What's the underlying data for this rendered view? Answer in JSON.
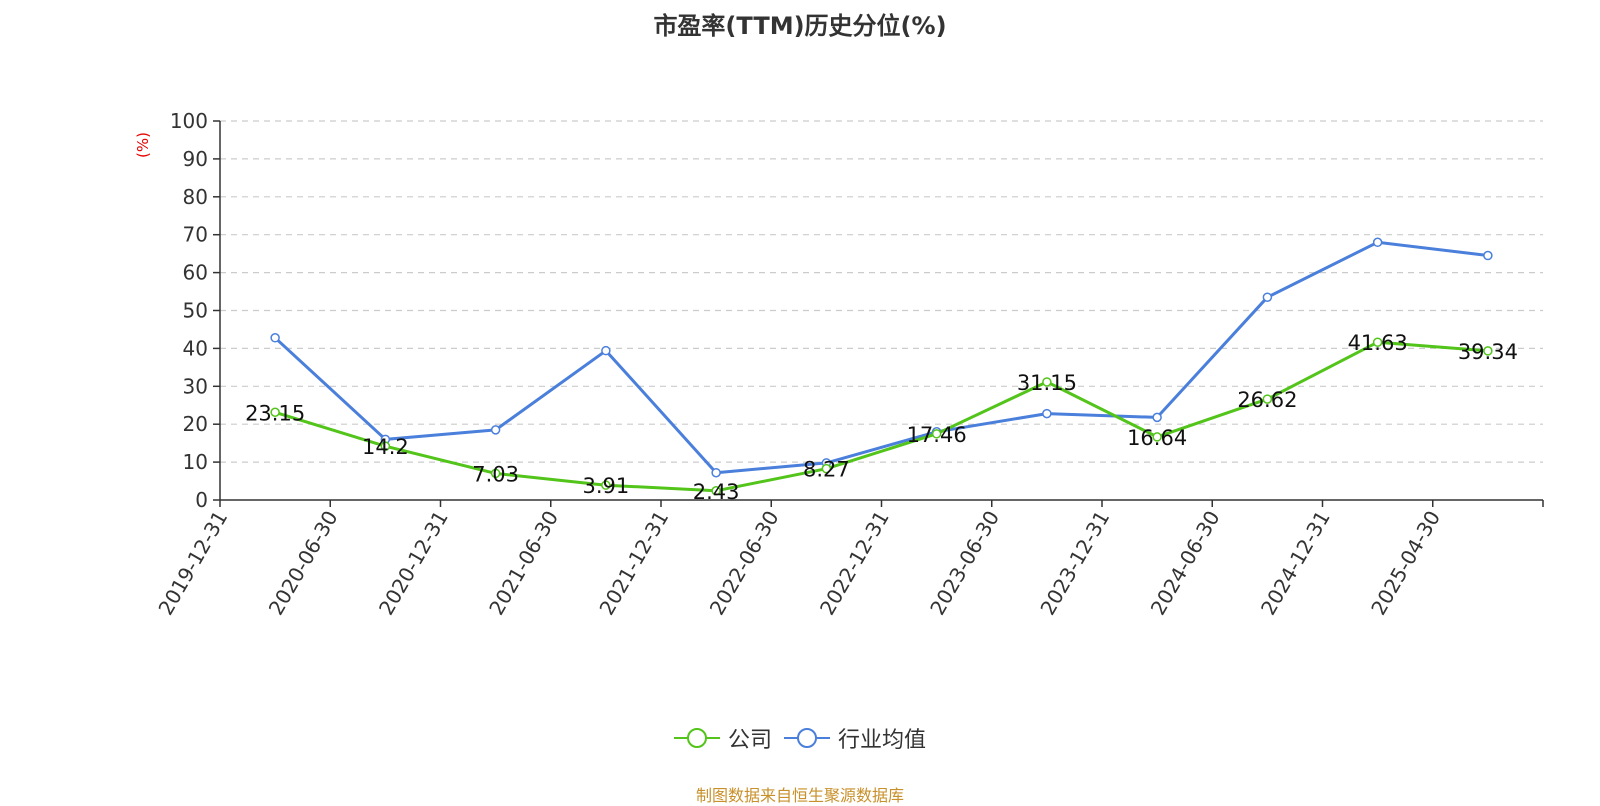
{
  "chart_data": {
    "type": "line",
    "title": "市盈率(TTM)历史分位(%)",
    "ylabel": "(%)",
    "xlabel": "",
    "ylim": [
      0,
      100
    ],
    "yticks": [
      "0",
      "10",
      "20",
      "30",
      "40",
      "50",
      "60",
      "70",
      "80",
      "90",
      "100"
    ],
    "categories": [
      "2019-12-31",
      "2020-06-30",
      "2020-12-31",
      "2021-06-30",
      "2021-12-31",
      "2022-06-30",
      "2022-12-31",
      "2023-06-30",
      "2023-12-31",
      "2024-06-30",
      "2024-12-31",
      "2025-04-30"
    ],
    "series": [
      {
        "name": "公司",
        "color": "#52c41a",
        "values": [
          23.15,
          14.2,
          7.03,
          3.91,
          2.43,
          8.27,
          17.46,
          31.15,
          16.64,
          26.62,
          41.63,
          39.34
        ],
        "data_labels": [
          "23.15",
          "14.2",
          "7.03",
          "3.91",
          "2.43",
          "8.27",
          "17.46",
          "31.15",
          "16.64",
          "26.62",
          "41.63",
          "39.34"
        ]
      },
      {
        "name": "行业均值",
        "color": "#4a7fdb",
        "values": [
          42.8,
          16.0,
          18.5,
          39.4,
          7.2,
          9.8,
          18.0,
          22.8,
          21.8,
          53.5,
          68.0,
          64.5
        ]
      }
    ],
    "grid": true,
    "grid_style": "dashed",
    "legend_position": "bottom-center"
  },
  "footer": {
    "source": "制图数据来自恒生聚源数据库"
  }
}
